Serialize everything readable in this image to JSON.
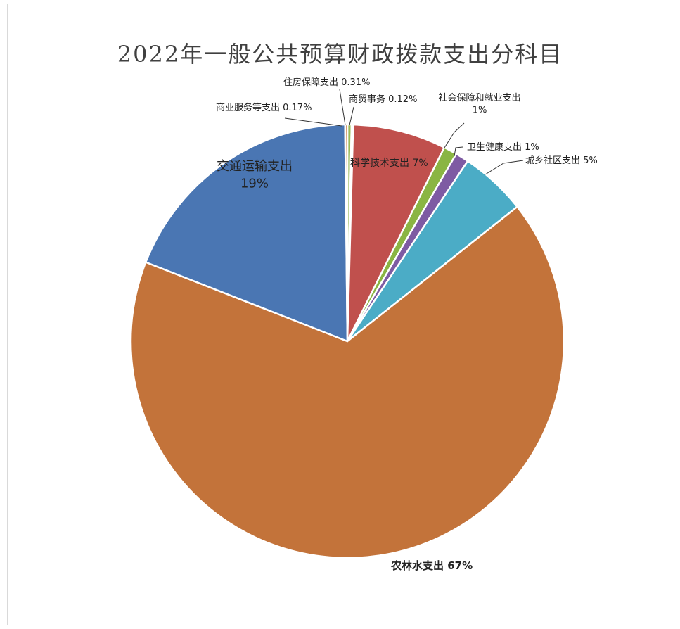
{
  "chart_data": {
    "type": "pie",
    "title": "2022年一般公共预算财政拨款支出分科目",
    "slices": [
      {
        "name": "住房保障支出",
        "value": 0.31,
        "value_label": "0.31%",
        "color": "#9bbb59"
      },
      {
        "name": "商贸事务",
        "value": 0.12,
        "value_label": "0.12%",
        "color": "#8064a2"
      },
      {
        "name": "科学技术支出",
        "value": 7,
        "value_label": "7%",
        "color": "#c0504d"
      },
      {
        "name": "社会保障和就业支出",
        "value": 1,
        "value_label": "1%",
        "color": "#8ab543"
      },
      {
        "name": "卫生健康支出",
        "value": 1,
        "value_label": "1%",
        "color": "#7e5ba3"
      },
      {
        "name": "城乡社区支出",
        "value": 5,
        "value_label": "5%",
        "color": "#4bacc6"
      },
      {
        "name": "农林水支出",
        "value": 67,
        "value_label": "67%",
        "color": "#c3733a"
      },
      {
        "name": "交通运输支出",
        "value": 19,
        "value_label": "19%",
        "color": "#4a76b3"
      },
      {
        "name": "商业服务等支出",
        "value": 0.17,
        "value_label": "0.17%",
        "color": "#c3733a"
      }
    ],
    "legend": "none"
  }
}
